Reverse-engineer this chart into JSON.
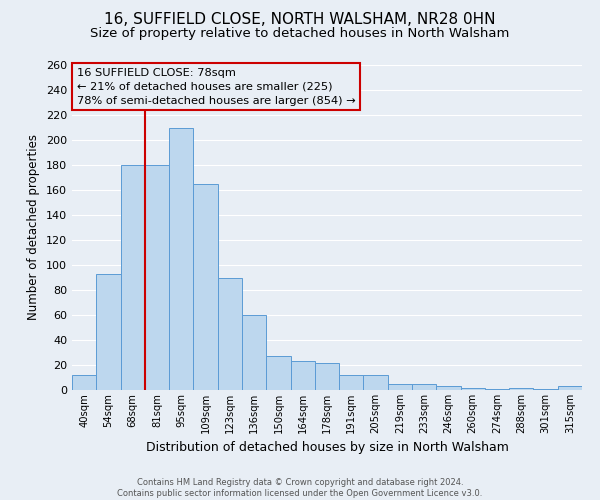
{
  "title": "16, SUFFIELD CLOSE, NORTH WALSHAM, NR28 0HN",
  "subtitle": "Size of property relative to detached houses in North Walsham",
  "xlabel": "Distribution of detached houses by size in North Walsham",
  "ylabel": "Number of detached properties",
  "bar_labels": [
    "40sqm",
    "54sqm",
    "68sqm",
    "81sqm",
    "95sqm",
    "109sqm",
    "123sqm",
    "136sqm",
    "150sqm",
    "164sqm",
    "178sqm",
    "191sqm",
    "205sqm",
    "219sqm",
    "233sqm",
    "246sqm",
    "260sqm",
    "274sqm",
    "288sqm",
    "301sqm",
    "315sqm"
  ],
  "bar_values": [
    12,
    93,
    180,
    180,
    210,
    165,
    90,
    60,
    27,
    23,
    22,
    12,
    12,
    5,
    5,
    3,
    2,
    1,
    2,
    1,
    3
  ],
  "bar_color": "#BDD7EE",
  "bar_edge_color": "#5B9BD5",
  "ylim": [
    0,
    260
  ],
  "yticks": [
    0,
    20,
    40,
    60,
    80,
    100,
    120,
    140,
    160,
    180,
    200,
    220,
    240,
    260
  ],
  "vline_index": 3,
  "vline_color": "#CC0000",
  "annotation_title": "16 SUFFIELD CLOSE: 78sqm",
  "annotation_line1": "← 21% of detached houses are smaller (225)",
  "annotation_line2": "78% of semi-detached houses are larger (854) →",
  "annotation_box_color": "#CC0000",
  "footer_line1": "Contains HM Land Registry data © Crown copyright and database right 2024.",
  "footer_line2": "Contains public sector information licensed under the Open Government Licence v3.0.",
  "background_color": "#E8EEF5",
  "grid_color": "#FFFFFF",
  "title_fontsize": 11,
  "subtitle_fontsize": 9.5
}
